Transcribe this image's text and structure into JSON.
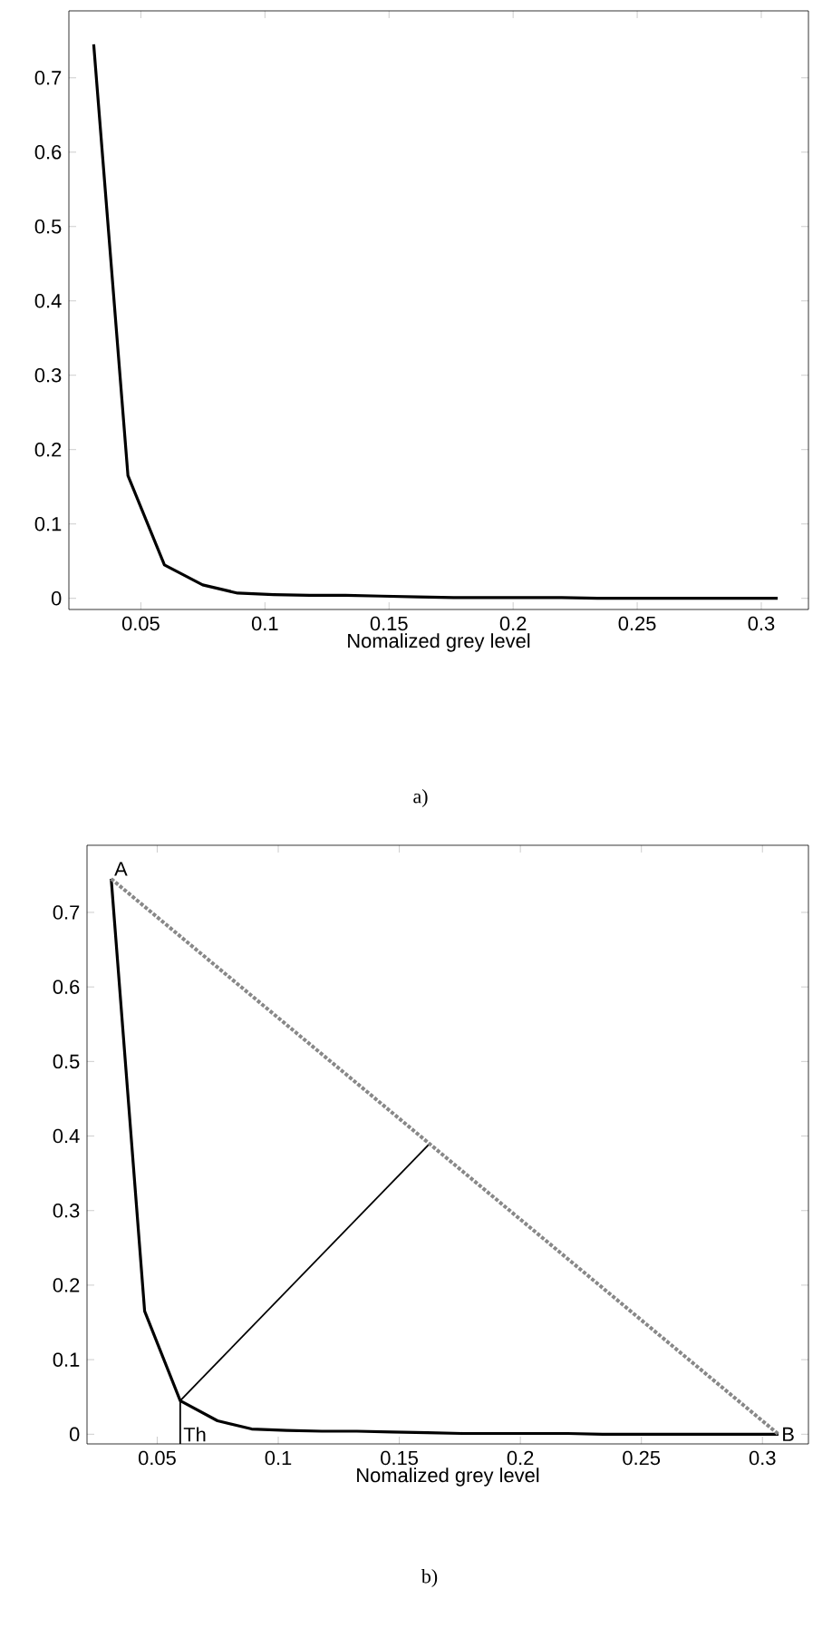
{
  "chart_data": [
    {
      "type": "line",
      "xlabel": "Nomalized grey level",
      "xlim": [
        0.021,
        0.319
      ],
      "ylim": [
        -0.015,
        0.79
      ],
      "xticks": [
        0.05,
        0.1,
        0.15,
        0.2,
        0.25,
        0.3
      ],
      "yticks": [
        0,
        0.1,
        0.2,
        0.3,
        0.4,
        0.5,
        0.6,
        0.7
      ],
      "grid": false,
      "line_style": "solid",
      "x": [
        0.031,
        0.0448,
        0.0595,
        0.0749,
        0.089,
        0.1035,
        0.118,
        0.1325,
        0.147,
        0.1615,
        0.176,
        0.1905,
        0.205,
        0.2195,
        0.234,
        0.2485,
        0.263,
        0.2775,
        0.292,
        0.3066
      ],
      "series": [
        {
          "color": "#000000",
          "values": [
            0.745,
            0.165,
            0.045,
            0.018,
            0.007,
            0.005,
            0.004,
            0.004,
            0.003,
            0.002,
            0.001,
            0.001,
            0.001,
            0.001,
            0,
            0,
            0,
            0,
            0,
            0
          ]
        }
      ],
      "annotations": [
        "a)"
      ]
    },
    {
      "type": "line",
      "xlabel": "Nomalized grey level",
      "xlim": [
        0.021,
        0.319
      ],
      "ylim": [
        -0.013,
        0.79
      ],
      "xticks": [
        0.05,
        0.1,
        0.15,
        0.2,
        0.25,
        0.3
      ],
      "yticks": [
        0,
        0.1,
        0.2,
        0.3,
        0.4,
        0.5,
        0.6,
        0.7
      ],
      "grid": false,
      "line_style": "solid",
      "x": [
        0.031,
        0.0448,
        0.0595,
        0.0749,
        0.089,
        0.1035,
        0.118,
        0.1325,
        0.147,
        0.1615,
        0.176,
        0.1905,
        0.205,
        0.2195,
        0.234,
        0.2485,
        0.263,
        0.2775,
        0.292,
        0.3066
      ],
      "series": [
        {
          "color": "#000000",
          "values": [
            0.745,
            0.165,
            0.045,
            0.018,
            0.007,
            0.005,
            0.004,
            0.004,
            0.003,
            0.002,
            0.001,
            0.001,
            0.001,
            0.001,
            0,
            0,
            0,
            0,
            0,
            0
          ]
        },
        {
          "color": "#888888",
          "line_style": "dotted",
          "x": [
            0.031,
            0.3066
          ],
          "values": [
            0.745,
            0
          ]
        },
        {
          "color": "#000000",
          "x": [
            0.0595,
            0.162
          ],
          "values": [
            0.045,
            0.388
          ]
        },
        {
          "color": "#000000",
          "x": [
            0.0595,
            0.0595
          ],
          "values": [
            -0.013,
            0.045
          ]
        }
      ],
      "annotations": [
        {
          "text": "A",
          "x": 0.031,
          "y": 0.745
        },
        {
          "text": "B",
          "x": 0.3066,
          "y": 0
        },
        {
          "text": "Th",
          "x": 0.0595,
          "y": 0
        },
        "b)"
      ]
    }
  ]
}
